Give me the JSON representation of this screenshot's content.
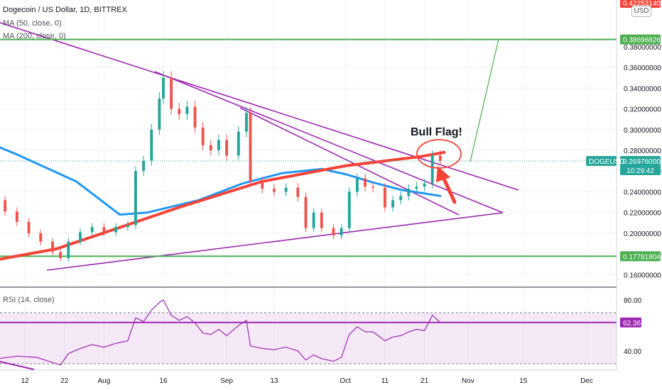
{
  "header": {
    "symbol_title": "Dogecoin / US Dollar, 1D, BITTREX",
    "ma50_label": "MA (50, close, 0)",
    "ma200_label": "MA (200, close, 0)",
    "currency_badge": "USD"
  },
  "price_axis": {
    "ticks": [
      "0.16000000",
      "0.18000000",
      "0.20000000",
      "0.22000000",
      "0.24000000",
      "0.26000000",
      "0.28000000",
      "0.30000000",
      "0.32000000",
      "0.34000000",
      "0.36000000",
      "0.38000000"
    ],
    "top_cut_label": "0.42253140"
  },
  "price_tags": {
    "resistance": "0.38696826",
    "support": "0.17781804",
    "last_price": "0.26976000",
    "symbol_code": "DOGEUSD",
    "countdown": "10:29:42"
  },
  "rsi_panel": {
    "label": "RSI (14, close)",
    "ticks": [
      "80.00",
      "40.00"
    ],
    "current_value": "62.36"
  },
  "time_axis": {
    "labels": [
      "12",
      "22",
      "Aug",
      "16",
      "Sep",
      "13",
      "Oct",
      "11",
      "21",
      "Nov",
      "15",
      "Dec"
    ]
  },
  "annotations": {
    "bull_flag_label": "Bull Flag!"
  },
  "colors": {
    "up_candle": "#26a69a",
    "down_candle": "#ef5350",
    "ma50": "#2196f3",
    "ma200": "#f44336",
    "trendline": "#9c27b0",
    "horizontal_level": "#4caf50",
    "rsi_line": "#9c27b0",
    "arrow": "#f44336"
  },
  "chart_data": {
    "type": "candlestick",
    "title": "Dogecoin / US Dollar, 1D, BITTREX",
    "y_axis": {
      "ylim": [
        0.148,
        0.425
      ],
      "scale": "linear",
      "unit": "USD"
    },
    "x_axis": {
      "ticks": [
        {
          "date": "2021-07-12",
          "label": "12"
        },
        {
          "date": "2021-07-22",
          "label": "22"
        },
        {
          "date": "2021-08-01",
          "label": "Aug"
        },
        {
          "date": "2021-08-16",
          "label": "16"
        },
        {
          "date": "2021-09-01",
          "label": "Sep"
        },
        {
          "date": "2021-09-13",
          "label": "13"
        },
        {
          "date": "2021-10-01",
          "label": "Oct"
        },
        {
          "date": "2021-10-11",
          "label": "11"
        },
        {
          "date": "2021-10-21",
          "label": "21"
        },
        {
          "date": "2021-11-01",
          "label": "Nov"
        },
        {
          "date": "2021-11-15",
          "label": "15"
        },
        {
          "date": "2021-12-01",
          "label": "Dec"
        }
      ]
    },
    "candles": [
      {
        "date": "2021-07-04",
        "close": 0.232
      },
      {
        "date": "2021-07-07",
        "close": 0.221
      },
      {
        "date": "2021-07-10",
        "close": 0.211
      },
      {
        "date": "2021-07-13",
        "close": 0.2
      },
      {
        "date": "2021-07-16",
        "close": 0.192
      },
      {
        "date": "2021-07-19",
        "close": 0.182
      },
      {
        "date": "2021-07-21",
        "close": 0.176
      },
      {
        "date": "2021-07-23",
        "close": 0.192
      },
      {
        "date": "2021-07-26",
        "close": 0.201
      },
      {
        "date": "2021-07-29",
        "close": 0.206
      },
      {
        "date": "2021-08-01",
        "close": 0.201
      },
      {
        "date": "2021-08-04",
        "close": 0.206
      },
      {
        "date": "2021-08-07",
        "close": 0.208
      },
      {
        "date": "2021-08-09",
        "close": 0.26
      },
      {
        "date": "2021-08-11",
        "close": 0.27
      },
      {
        "date": "2021-08-13",
        "close": 0.3
      },
      {
        "date": "2021-08-15",
        "close": 0.33
      },
      {
        "date": "2021-08-16",
        "close": 0.35
      },
      {
        "date": "2021-08-18",
        "close": 0.32
      },
      {
        "date": "2021-08-20",
        "close": 0.315
      },
      {
        "date": "2021-08-22",
        "close": 0.322
      },
      {
        "date": "2021-08-24",
        "close": 0.302
      },
      {
        "date": "2021-08-26",
        "close": 0.285
      },
      {
        "date": "2021-08-28",
        "close": 0.28
      },
      {
        "date": "2021-08-30",
        "close": 0.29
      },
      {
        "date": "2021-09-01",
        "close": 0.275
      },
      {
        "date": "2021-09-04",
        "close": 0.298
      },
      {
        "date": "2021-09-06",
        "close": 0.316
      },
      {
        "date": "2021-09-07",
        "close": 0.25
      },
      {
        "date": "2021-09-10",
        "close": 0.243
      },
      {
        "date": "2021-09-13",
        "close": 0.24
      },
      {
        "date": "2021-09-16",
        "close": 0.244
      },
      {
        "date": "2021-09-19",
        "close": 0.235
      },
      {
        "date": "2021-09-21",
        "close": 0.205
      },
      {
        "date": "2021-09-23",
        "close": 0.22
      },
      {
        "date": "2021-09-25",
        "close": 0.205
      },
      {
        "date": "2021-09-28",
        "close": 0.198
      },
      {
        "date": "2021-09-30",
        "close": 0.205
      },
      {
        "date": "2021-10-02",
        "close": 0.24
      },
      {
        "date": "2021-10-04",
        "close": 0.253
      },
      {
        "date": "2021-10-06",
        "close": 0.245
      },
      {
        "date": "2021-10-08",
        "close": 0.244
      },
      {
        "date": "2021-10-11",
        "close": 0.225
      },
      {
        "date": "2021-10-13",
        "close": 0.232
      },
      {
        "date": "2021-10-15",
        "close": 0.236
      },
      {
        "date": "2021-10-17",
        "close": 0.243
      },
      {
        "date": "2021-10-19",
        "close": 0.245
      },
      {
        "date": "2021-10-21",
        "close": 0.248
      },
      {
        "date": "2021-10-23",
        "close": 0.275
      },
      {
        "date": "2021-10-25",
        "close": 0.27
      }
    ],
    "moving_averages": [
      {
        "name": "MA (50, close, 0)",
        "points": [
          [
            "2021-06-20",
            0.308
          ],
          [
            "2021-07-10",
            0.276
          ],
          [
            "2021-07-25",
            0.25
          ],
          [
            "2021-08-05",
            0.218
          ],
          [
            "2021-08-12",
            0.22
          ],
          [
            "2021-08-25",
            0.232
          ],
          [
            "2021-09-05",
            0.248
          ],
          [
            "2021-09-15",
            0.258
          ],
          [
            "2021-09-25",
            0.262
          ],
          [
            "2021-10-01",
            0.257
          ],
          [
            "2021-10-08",
            0.249
          ],
          [
            "2021-10-15",
            0.242
          ],
          [
            "2021-10-25",
            0.236
          ]
        ]
      },
      {
        "name": "MA (200, close, 0)",
        "points": [
          [
            "2021-06-20",
            0.164
          ],
          [
            "2021-07-20",
            0.185
          ],
          [
            "2021-08-20",
            0.225
          ],
          [
            "2021-09-10",
            0.25
          ],
          [
            "2021-10-01",
            0.265
          ],
          [
            "2021-10-20",
            0.274
          ],
          [
            "2021-10-26",
            0.278
          ]
        ]
      }
    ],
    "horizontal_levels": [
      0.38696826,
      0.17781804
    ],
    "last_price": 0.26976,
    "rsi": {
      "label": "RSI (14, close)",
      "ylim": [
        25,
        90
      ],
      "last": 62.36,
      "values": [
        [
          "2021-06-25",
          25
        ],
        [
          "2021-07-03",
          33
        ],
        [
          "2021-07-10",
          36
        ],
        [
          "2021-07-15",
          35
        ],
        [
          "2021-07-19",
          31
        ],
        [
          "2021-07-21",
          29
        ],
        [
          "2021-07-23",
          38
        ],
        [
          "2021-07-26",
          42
        ],
        [
          "2021-07-29",
          45
        ],
        [
          "2021-08-01",
          43
        ],
        [
          "2021-08-04",
          46
        ],
        [
          "2021-08-07",
          48
        ],
        [
          "2021-08-09",
          66
        ],
        [
          "2021-08-11",
          63
        ],
        [
          "2021-08-13",
          72
        ],
        [
          "2021-08-15",
          78
        ],
        [
          "2021-08-16",
          80
        ],
        [
          "2021-08-18",
          68
        ],
        [
          "2021-08-20",
          64
        ],
        [
          "2021-08-22",
          67
        ],
        [
          "2021-08-24",
          62
        ],
        [
          "2021-08-26",
          54
        ],
        [
          "2021-08-28",
          53
        ],
        [
          "2021-08-30",
          57
        ],
        [
          "2021-09-01",
          52
        ],
        [
          "2021-09-04",
          60
        ],
        [
          "2021-09-06",
          64
        ],
        [
          "2021-09-07",
          44
        ],
        [
          "2021-09-10",
          42
        ],
        [
          "2021-09-13",
          41
        ],
        [
          "2021-09-16",
          43
        ],
        [
          "2021-09-19",
          40
        ],
        [
          "2021-09-21",
          33
        ],
        [
          "2021-09-23",
          37
        ],
        [
          "2021-09-25",
          34
        ],
        [
          "2021-09-28",
          32
        ],
        [
          "2021-09-30",
          35
        ],
        [
          "2021-10-02",
          53
        ],
        [
          "2021-10-04",
          59
        ],
        [
          "2021-10-06",
          55
        ],
        [
          "2021-10-08",
          55
        ],
        [
          "2021-10-11",
          48
        ],
        [
          "2021-10-13",
          51
        ],
        [
          "2021-10-15",
          52
        ],
        [
          "2021-10-17",
          55
        ],
        [
          "2021-10-19",
          57
        ],
        [
          "2021-10-21",
          56
        ],
        [
          "2021-10-23",
          68
        ],
        [
          "2021-10-25",
          62.36
        ]
      ]
    }
  }
}
